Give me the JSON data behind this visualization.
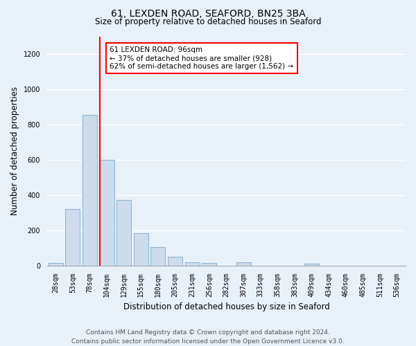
{
  "title1": "61, LEXDEN ROAD, SEAFORD, BN25 3BA",
  "title2": "Size of property relative to detached houses in Seaford",
  "xlabel": "Distribution of detached houses by size in Seaford",
  "ylabel": "Number of detached properties",
  "bin_labels": [
    "28sqm",
    "53sqm",
    "78sqm",
    "104sqm",
    "129sqm",
    "155sqm",
    "180sqm",
    "205sqm",
    "231sqm",
    "256sqm",
    "282sqm",
    "307sqm",
    "333sqm",
    "358sqm",
    "383sqm",
    "409sqm",
    "434sqm",
    "460sqm",
    "485sqm",
    "511sqm",
    "536sqm"
  ],
  "bar_heights": [
    15,
    320,
    855,
    600,
    370,
    185,
    105,
    50,
    20,
    15,
    0,
    20,
    0,
    0,
    0,
    10,
    0,
    0,
    0,
    0,
    0
  ],
  "bar_color": "#ccdcec",
  "bar_edge_color": "#7aaac8",
  "vline_color": "red",
  "annotation_text": "61 LEXDEN ROAD: 96sqm\n← 37% of detached houses are smaller (928)\n62% of semi-detached houses are larger (1,562) →",
  "annotation_box_color": "white",
  "annotation_box_edge": "red",
  "ylim": [
    0,
    1300
  ],
  "yticks": [
    0,
    200,
    400,
    600,
    800,
    1000,
    1200
  ],
  "footer": "Contains HM Land Registry data © Crown copyright and database right 2024.\nContains public sector information licensed under the Open Government Licence v3.0.",
  "bg_color": "#e8f0f8",
  "title1_fontsize": 10,
  "title2_fontsize": 8.5,
  "ylabel_fontsize": 8.5,
  "xlabel_fontsize": 8.5,
  "tick_fontsize": 7,
  "footer_fontsize": 6.5,
  "annotation_fontsize": 7.5,
  "grid_color": "#ffffff",
  "vline_x_index": 3
}
